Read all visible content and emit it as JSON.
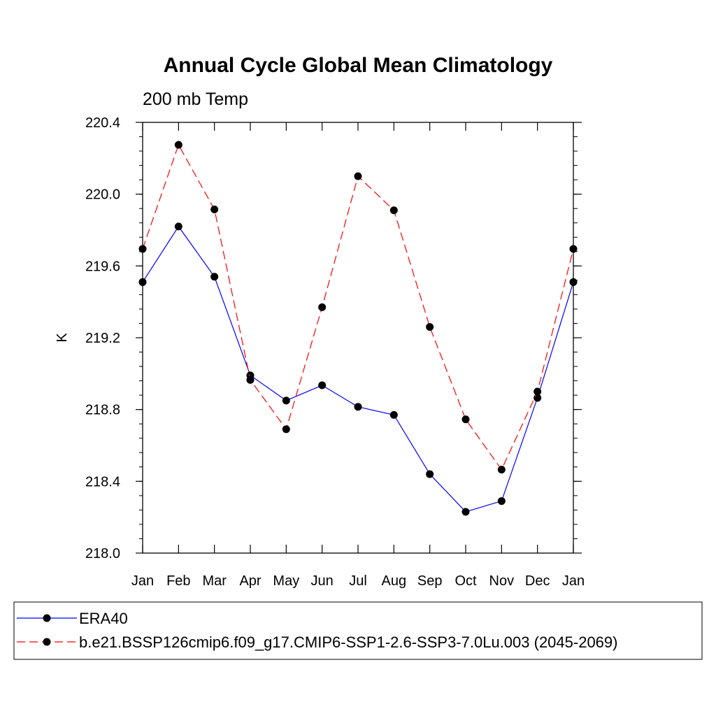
{
  "chart_data": {
    "type": "line",
    "title": "Annual Cycle Global Mean Climatology",
    "subtitle": "200 mb Temp",
    "xlabel": "",
    "ylabel": "K",
    "categories": [
      "Jan",
      "Feb",
      "Mar",
      "Apr",
      "May",
      "Jun",
      "Jul",
      "Aug",
      "Sep",
      "Oct",
      "Nov",
      "Dec",
      "Jan"
    ],
    "ylim": [
      218.0,
      220.4
    ],
    "yticks": [
      218.0,
      218.4,
      218.8,
      219.2,
      219.6,
      220.0,
      220.4
    ],
    "ytick_labels": [
      "218.0",
      "218.4",
      "218.8",
      "219.2",
      "219.6",
      "220.0",
      "220.4"
    ],
    "grid": false,
    "legend_position": "bottom",
    "series": [
      {
        "name": "ERA40",
        "color": "#0000ff",
        "dashed": false,
        "values": [
          219.51,
          219.82,
          219.54,
          218.99,
          218.85,
          218.935,
          218.815,
          218.77,
          218.44,
          218.23,
          218.29,
          218.865,
          219.51
        ]
      },
      {
        "name": "b.e21.BSSP126cmip6.f09_g17.CMIP6-SSP1-2.6-SSP3-7.0Lu.003 (2045-2069)",
        "color": "#ff0000",
        "dashed": true,
        "values": [
          219.695,
          220.275,
          219.915,
          218.965,
          218.69,
          219.37,
          220.1,
          219.91,
          219.26,
          218.745,
          218.465,
          218.9,
          219.695
        ]
      }
    ]
  }
}
